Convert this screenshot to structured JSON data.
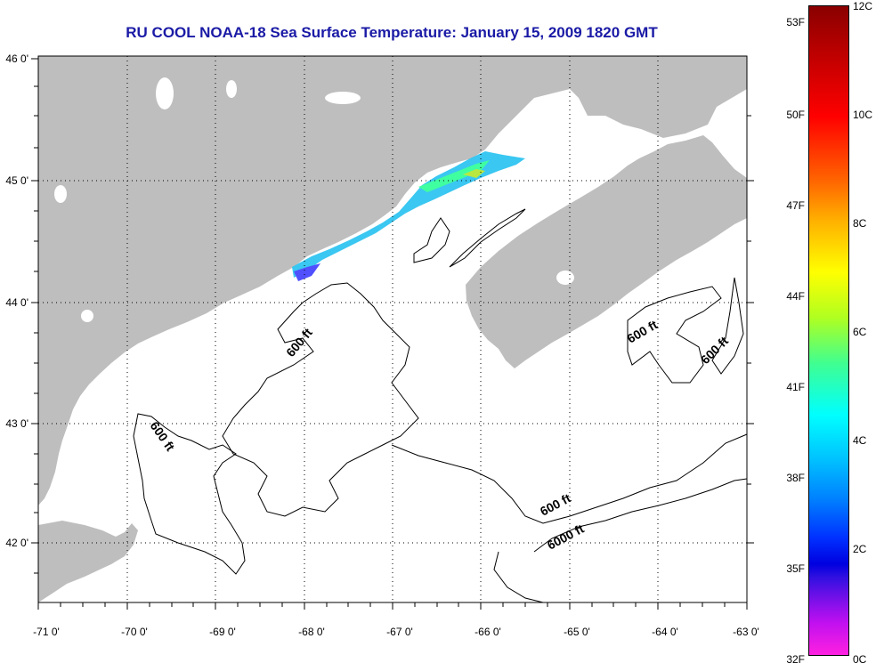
{
  "title": "RU COOL  NOAA-18  Sea Surface Temperature:  January 15, 2009 1820 GMT",
  "map": {
    "lon_range": [
      -71,
      -63
    ],
    "lat_range": [
      41.5,
      46
    ],
    "x_ticks": [
      "-71 0'",
      "-70 0'",
      "-69 0'",
      "-68 0'",
      "-67 0'",
      "-66 0'",
      "-65 0'",
      "-64 0'",
      "-63 0'"
    ],
    "y_ticks": [
      "46 0'",
      "45 0'",
      "44 0'",
      "43 0'",
      "42 0'"
    ],
    "land_color": "#bebebe",
    "water_color": "#ffffff",
    "gridlines": "dotted",
    "contour_labels": {
      "c1": "600 ft",
      "c2": "600 ft",
      "c3": "600 ft",
      "c4": "600 ft",
      "c5": "600 ft",
      "c6": "6000 ft"
    }
  },
  "colorbar": {
    "fahrenheit": [
      "53F",
      "50F",
      "47F",
      "44F",
      "41F",
      "38F",
      "35F",
      "32F"
    ],
    "celsius": [
      "12C",
      "10C",
      "8C",
      "6C",
      "4C",
      "2C",
      "0C"
    ],
    "colors": [
      "#8a0000",
      "#ff0000",
      "#ffb000",
      "#ffff00",
      "#40ff90",
      "#00ffff",
      "#0080ff",
      "#0000e0",
      "#7010e8",
      "#ff20e0"
    ]
  }
}
